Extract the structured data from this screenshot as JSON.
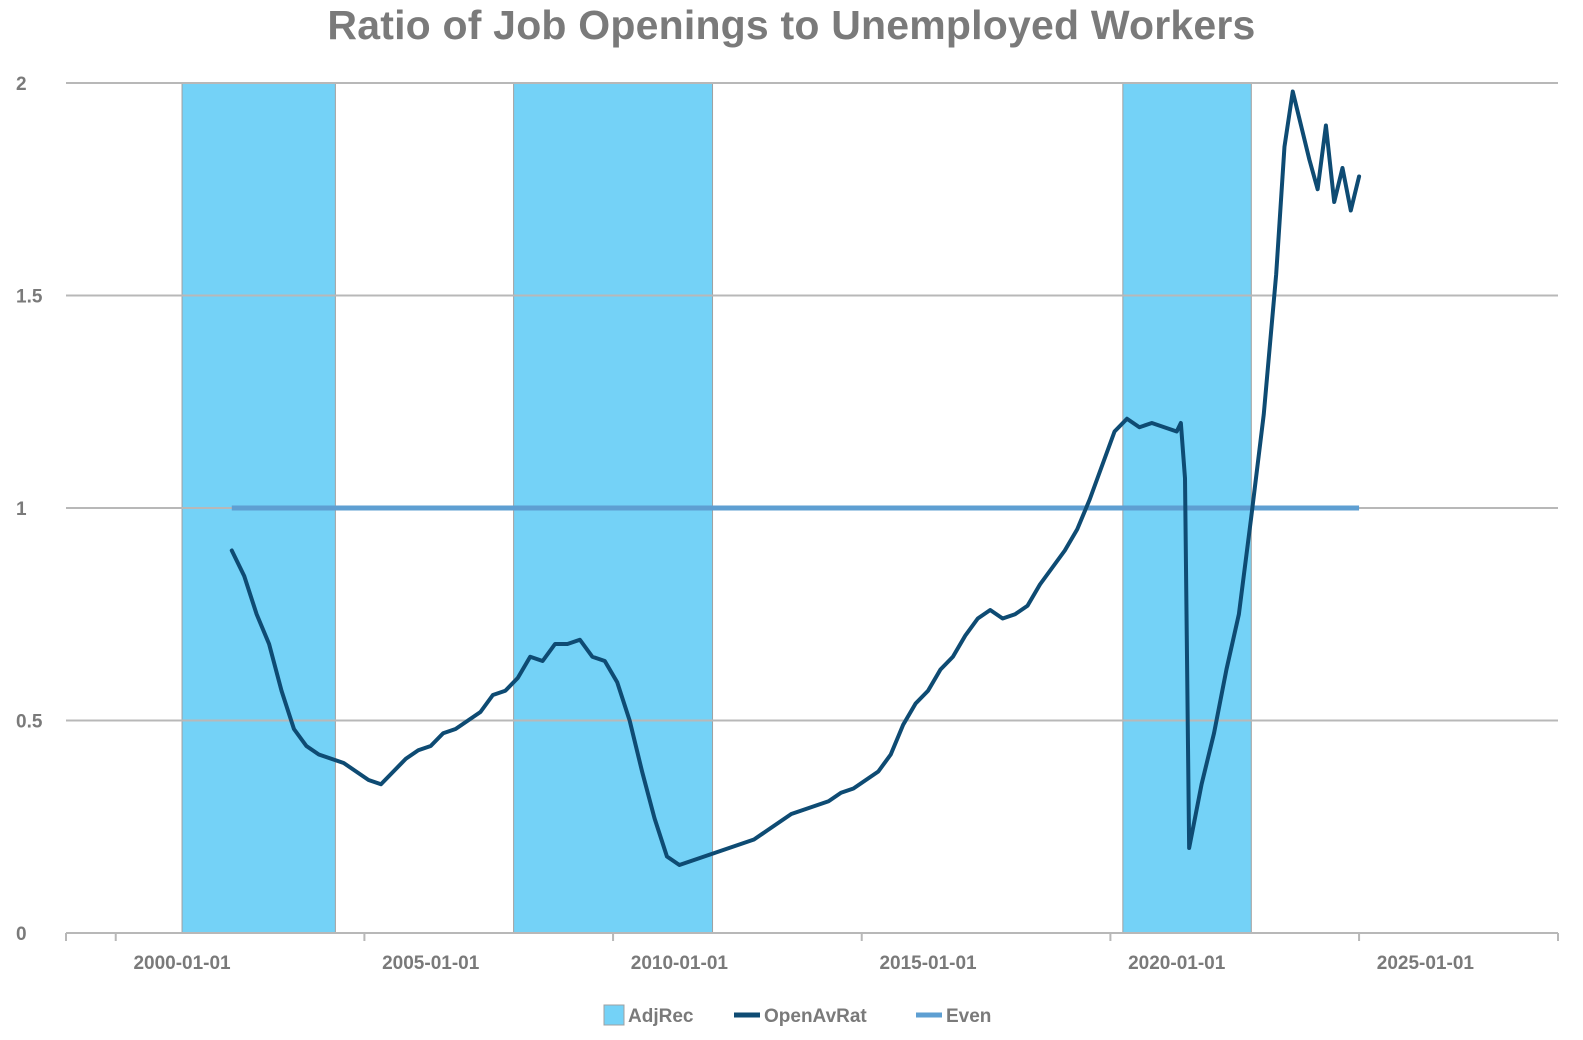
{
  "chart_data": {
    "type": "line",
    "title": "Ratio of Job Openings to Unemployed Workers",
    "xlabel": "",
    "ylabel": "",
    "x_range": [
      "1997-09-01",
      "2027-09-01"
    ],
    "ylim": [
      0,
      2
    ],
    "y_ticks": [
      0,
      0.5,
      1,
      1.5,
      2
    ],
    "y_tick_labels": [
      "0",
      "0.5",
      "1",
      "1.5",
      "2"
    ],
    "x_ticks": [
      "2000-01-01",
      "2005-01-01",
      "2010-01-01",
      "2015-01-01",
      "2020-01-01",
      "2025-01-01"
    ],
    "x_tick_labels": [
      "2000-01-01",
      "2005-01-01",
      "2010-01-01",
      "2015-01-01",
      "2020-01-01",
      "2025-01-01"
    ],
    "grid": "horizontal",
    "legend_position": "bottom",
    "series": [
      {
        "name": "AdjRec",
        "kind": "shaded-periods",
        "color": "#74d2f7",
        "periods": [
          [
            "2000-01-01",
            "2003-02-01"
          ],
          [
            "2006-09-01",
            "2010-09-01"
          ],
          [
            "2018-12-01",
            "2021-07-01"
          ]
        ]
      },
      {
        "name": "OpenAvRat",
        "kind": "line",
        "color": "#0e4b73",
        "points": [
          [
            "2001-01-01",
            0.9
          ],
          [
            "2001-04-01",
            0.84
          ],
          [
            "2001-07-01",
            0.75
          ],
          [
            "2001-10-01",
            0.68
          ],
          [
            "2002-01-01",
            0.57
          ],
          [
            "2002-04-01",
            0.48
          ],
          [
            "2002-07-01",
            0.44
          ],
          [
            "2002-10-01",
            0.42
          ],
          [
            "2003-01-01",
            0.41
          ],
          [
            "2003-04-01",
            0.4
          ],
          [
            "2003-07-01",
            0.38
          ],
          [
            "2003-10-01",
            0.36
          ],
          [
            "2004-01-01",
            0.35
          ],
          [
            "2004-04-01",
            0.38
          ],
          [
            "2004-07-01",
            0.41
          ],
          [
            "2004-10-01",
            0.43
          ],
          [
            "2005-01-01",
            0.44
          ],
          [
            "2005-04-01",
            0.47
          ],
          [
            "2005-07-01",
            0.48
          ],
          [
            "2005-10-01",
            0.5
          ],
          [
            "2006-01-01",
            0.52
          ],
          [
            "2006-04-01",
            0.56
          ],
          [
            "2006-07-01",
            0.57
          ],
          [
            "2006-10-01",
            0.6
          ],
          [
            "2007-01-01",
            0.65
          ],
          [
            "2007-04-01",
            0.64
          ],
          [
            "2007-07-01",
            0.68
          ],
          [
            "2007-10-01",
            0.68
          ],
          [
            "2008-01-01",
            0.69
          ],
          [
            "2008-04-01",
            0.65
          ],
          [
            "2008-07-01",
            0.64
          ],
          [
            "2008-10-01",
            0.59
          ],
          [
            "2009-01-01",
            0.5
          ],
          [
            "2009-04-01",
            0.38
          ],
          [
            "2009-07-01",
            0.27
          ],
          [
            "2009-10-01",
            0.18
          ],
          [
            "2010-01-01",
            0.16
          ],
          [
            "2010-04-01",
            0.17
          ],
          [
            "2010-07-01",
            0.18
          ],
          [
            "2010-10-01",
            0.19
          ],
          [
            "2011-01-01",
            0.2
          ],
          [
            "2011-04-01",
            0.21
          ],
          [
            "2011-07-01",
            0.22
          ],
          [
            "2011-10-01",
            0.24
          ],
          [
            "2012-01-01",
            0.26
          ],
          [
            "2012-04-01",
            0.28
          ],
          [
            "2012-07-01",
            0.29
          ],
          [
            "2012-10-01",
            0.3
          ],
          [
            "2013-01-01",
            0.31
          ],
          [
            "2013-04-01",
            0.33
          ],
          [
            "2013-07-01",
            0.34
          ],
          [
            "2013-10-01",
            0.36
          ],
          [
            "2014-01-01",
            0.38
          ],
          [
            "2014-04-01",
            0.42
          ],
          [
            "2014-07-01",
            0.49
          ],
          [
            "2014-10-01",
            0.54
          ],
          [
            "2015-01-01",
            0.57
          ],
          [
            "2015-04-01",
            0.62
          ],
          [
            "2015-07-01",
            0.65
          ],
          [
            "2015-10-01",
            0.7
          ],
          [
            "2016-01-01",
            0.74
          ],
          [
            "2016-04-01",
            0.76
          ],
          [
            "2016-07-01",
            0.74
          ],
          [
            "2016-10-01",
            0.75
          ],
          [
            "2017-01-01",
            0.77
          ],
          [
            "2017-04-01",
            0.82
          ],
          [
            "2017-07-01",
            0.86
          ],
          [
            "2017-10-01",
            0.9
          ],
          [
            "2018-01-01",
            0.95
          ],
          [
            "2018-04-01",
            1.02
          ],
          [
            "2018-07-01",
            1.1
          ],
          [
            "2018-10-01",
            1.18
          ],
          [
            "2019-01-01",
            1.21
          ],
          [
            "2019-04-01",
            1.19
          ],
          [
            "2019-07-01",
            1.2
          ],
          [
            "2019-10-01",
            1.19
          ],
          [
            "2020-01-01",
            1.18
          ],
          [
            "2020-02-01",
            1.2
          ],
          [
            "2020-03-01",
            1.07
          ],
          [
            "2020-04-01",
            0.2
          ],
          [
            "2020-07-01",
            0.35
          ],
          [
            "2020-10-01",
            0.47
          ],
          [
            "2021-01-01",
            0.62
          ],
          [
            "2021-04-01",
            0.75
          ],
          [
            "2021-07-01",
            0.98
          ],
          [
            "2021-10-01",
            1.22
          ],
          [
            "2022-01-01",
            1.55
          ],
          [
            "2022-03-01",
            1.85
          ],
          [
            "2022-05-01",
            1.98
          ],
          [
            "2022-07-01",
            1.9
          ],
          [
            "2022-09-01",
            1.82
          ],
          [
            "2022-11-01",
            1.75
          ],
          [
            "2023-01-01",
            1.9
          ],
          [
            "2023-03-01",
            1.72
          ],
          [
            "2023-05-01",
            1.8
          ],
          [
            "2023-07-01",
            1.7
          ],
          [
            "2023-09-01",
            1.78
          ]
        ]
      },
      {
        "name": "Even",
        "kind": "line",
        "color": "#5e9fd2",
        "points": [
          [
            "2001-01-01",
            1
          ],
          [
            "2023-09-01",
            1
          ]
        ]
      }
    ],
    "colors": {
      "shade": "#74d2f7",
      "shade_border": "#a0a0a0",
      "main_line": "#0e4b73",
      "even_line": "#5e9fd2",
      "grid": "#b8b8b8",
      "text": "#7a7a7a"
    }
  }
}
